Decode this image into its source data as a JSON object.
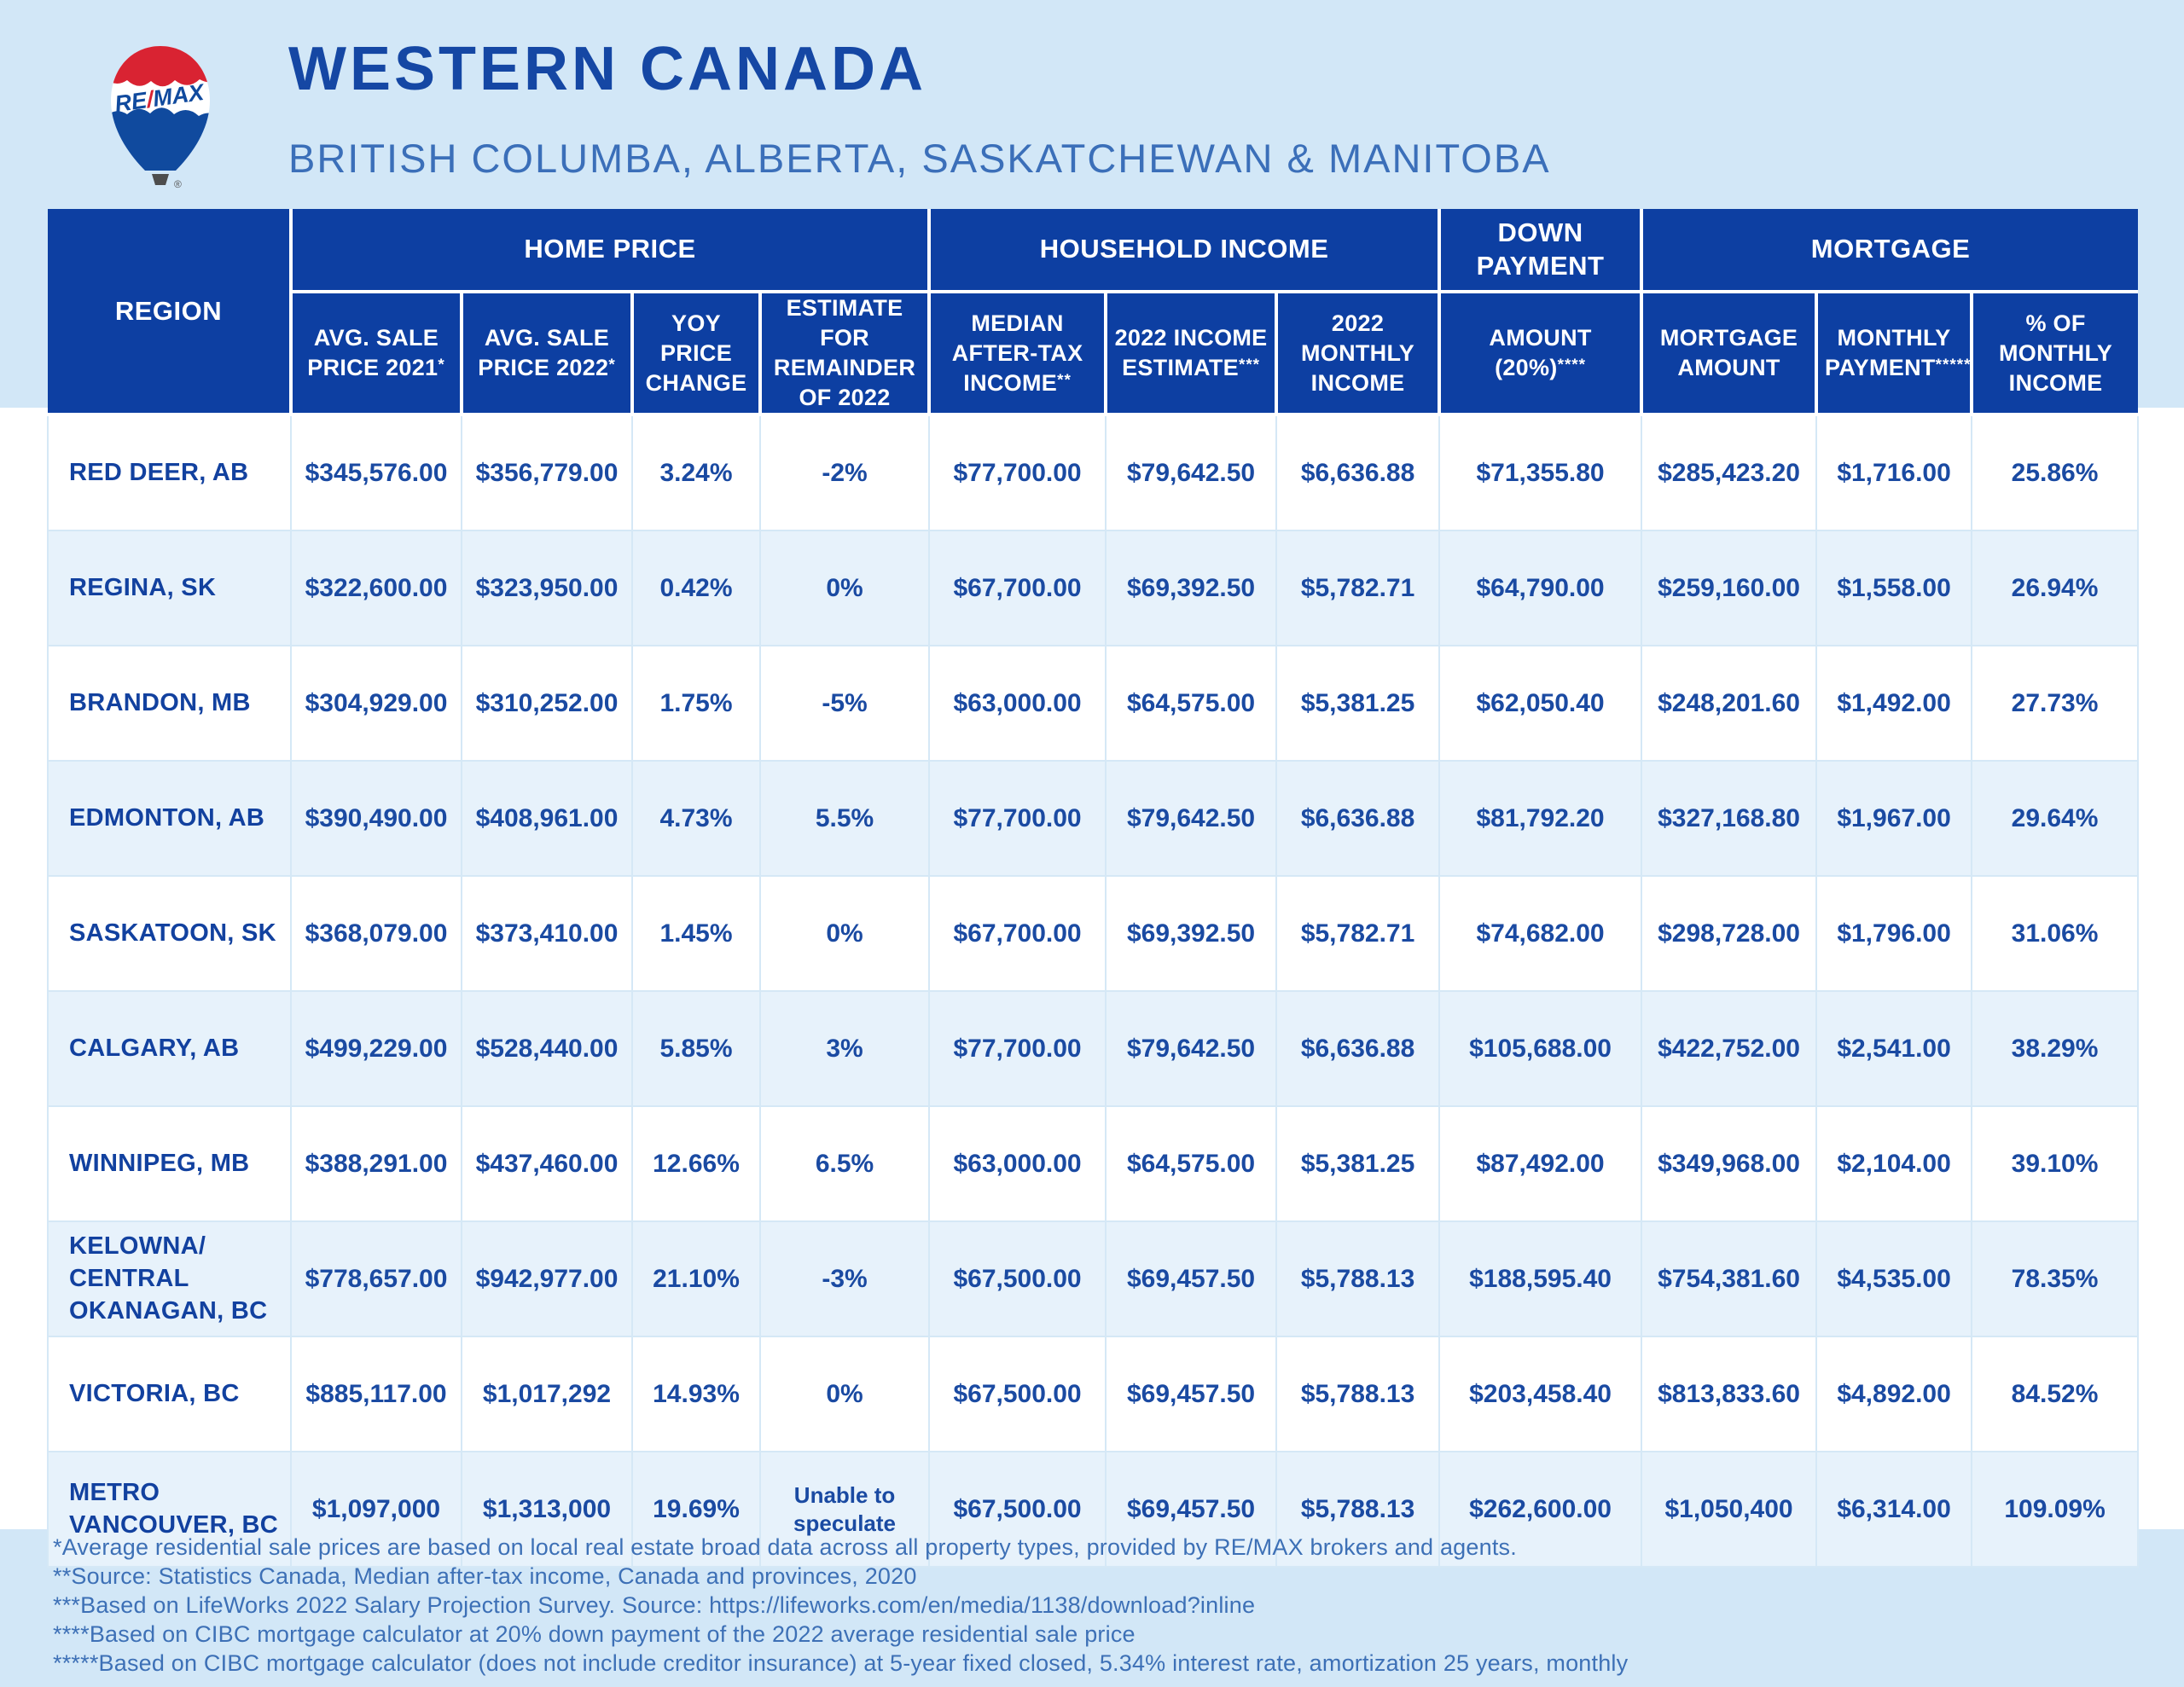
{
  "header": {
    "title": "WESTERN CANADA",
    "subtitle": "BRITISH COLUMBA, ALBERTA, SASKATCHEWAN & MANITOBA",
    "logo": {
      "line1": "RE",
      "slash": "/",
      "line2": "MAX",
      "registered": "®"
    }
  },
  "colors": {
    "page_background": "#d2e7f7",
    "header_blue": "#0d3fa2",
    "data_text_blue": "#1a4aa2",
    "alt_row_blue": "#e7f2fb",
    "grid_line": "#d5e8f6",
    "subtitle_blue": "#3b6fb9",
    "footnote_blue": "#3d70b6",
    "brand_red": "#d92332",
    "brand_blue": "#104a9e"
  },
  "chart_data": {
    "type": "table",
    "title": "WESTERN CANADA",
    "subtitle": "BRITISH COLUMBA, ALBERTA, SASKATCHEWAN & MANITOBA",
    "region_header": "REGION",
    "column_groups": [
      {
        "label": "HOME PRICE",
        "colspan": 4
      },
      {
        "label": "HOUSEHOLD INCOME",
        "colspan": 3
      },
      {
        "label": "DOWN PAYMENT",
        "colspan": 1
      },
      {
        "label": "MORTGAGE",
        "colspan": 3
      }
    ],
    "columns": [
      "AVG. SALE PRICE 2021*",
      "AVG. SALE PRICE 2022*",
      "YOY PRICE CHANGE",
      "ESTIMATE FOR REMAINDER OF 2022",
      "MEDIAN AFTER-TAX INCOME**",
      "2022 INCOME ESTIMATE***",
      "2022 MONTHLY INCOME",
      "AMOUNT (20%)****",
      "MORTGAGE AMOUNT",
      "MONTHLY PAYMENT*****",
      "% OF MONTHLY INCOME"
    ],
    "rows": [
      {
        "region": "RED DEER, AB",
        "values": [
          "$345,576.00",
          "$356,779.00",
          "3.24%",
          "-2%",
          "$77,700.00",
          "$79,642.50",
          "$6,636.88",
          "$71,355.80",
          "$285,423.20",
          "$1,716.00",
          "25.86%"
        ]
      },
      {
        "region": "REGINA, SK",
        "values": [
          "$322,600.00",
          "$323,950.00",
          "0.42%",
          "0%",
          "$67,700.00",
          "$69,392.50",
          "$5,782.71",
          "$64,790.00",
          "$259,160.00",
          "$1,558.00",
          "26.94%"
        ]
      },
      {
        "region": "BRANDON, MB",
        "values": [
          "$304,929.00",
          "$310,252.00",
          "1.75%",
          "-5%",
          "$63,000.00",
          "$64,575.00",
          "$5,381.25",
          "$62,050.40",
          "$248,201.60",
          "$1,492.00",
          "27.73%"
        ]
      },
      {
        "region": "EDMONTON, AB",
        "values": [
          "$390,490.00",
          "$408,961.00",
          "4.73%",
          "5.5%",
          "$77,700.00",
          "$79,642.50",
          "$6,636.88",
          "$81,792.20",
          "$327,168.80",
          "$1,967.00",
          "29.64%"
        ]
      },
      {
        "region": "SASKATOON, SK",
        "values": [
          "$368,079.00",
          "$373,410.00",
          "1.45%",
          "0%",
          "$67,700.00",
          "$69,392.50",
          "$5,782.71",
          "$74,682.00",
          "$298,728.00",
          "$1,796.00",
          "31.06%"
        ]
      },
      {
        "region": "CALGARY, AB",
        "values": [
          "$499,229.00",
          "$528,440.00",
          "5.85%",
          "3%",
          "$77,700.00",
          "$79,642.50",
          "$6,636.88",
          "$105,688.00",
          "$422,752.00",
          "$2,541.00",
          "38.29%"
        ]
      },
      {
        "region": "WINNIPEG, MB",
        "values": [
          "$388,291.00",
          "$437,460.00",
          "12.66%",
          "6.5%",
          "$63,000.00",
          "$64,575.00",
          "$5,381.25",
          "$87,492.00",
          "$349,968.00",
          "$2,104.00",
          "39.10%"
        ]
      },
      {
        "region": "KELOWNA/ CENTRAL OKANAGAN, BC",
        "values": [
          "$778,657.00",
          "$942,977.00",
          "21.10%",
          "-3%",
          "$67,500.00",
          "$69,457.50",
          "$5,788.13",
          "$188,595.40",
          "$754,381.60",
          "$4,535.00",
          "78.35%"
        ]
      },
      {
        "region": "VICTORIA, BC",
        "values": [
          "$885,117.00",
          "$1,017,292",
          "14.93%",
          "0%",
          "$67,500.00",
          "$69,457.50",
          "$5,788.13",
          "$203,458.40",
          "$813,833.60",
          "$4,892.00",
          "84.52%"
        ]
      },
      {
        "region": "METRO VANCOUVER, BC",
        "values": [
          "$1,097,000",
          "$1,313,000",
          "19.69%",
          "Unable to speculate",
          "$67,500.00",
          "$69,457.50",
          "$5,788.13",
          "$262,600.00",
          "$1,050,400",
          "$6,314.00",
          "109.09%"
        ]
      }
    ],
    "footnotes": [
      "*Average residential sale prices are based on local real estate broad data across all property types, provided by RE/MAX brokers and agents.",
      "**Source: Statistics Canada, Median after-tax income, Canada and provinces, 2020",
      "***Based on LifeWorks 2022 Salary Projection Survey. Source: https://lifeworks.com/en/media/1138/download?inline",
      "****Based on CIBC mortgage calculator at 20% down payment of the 2022 average residential sale price",
      "*****Based on CIBC mortgage calculator (does not include creditor insurance) at 5-year fixed closed, 5.34% interest rate, amortization 25 years, monthly"
    ]
  }
}
